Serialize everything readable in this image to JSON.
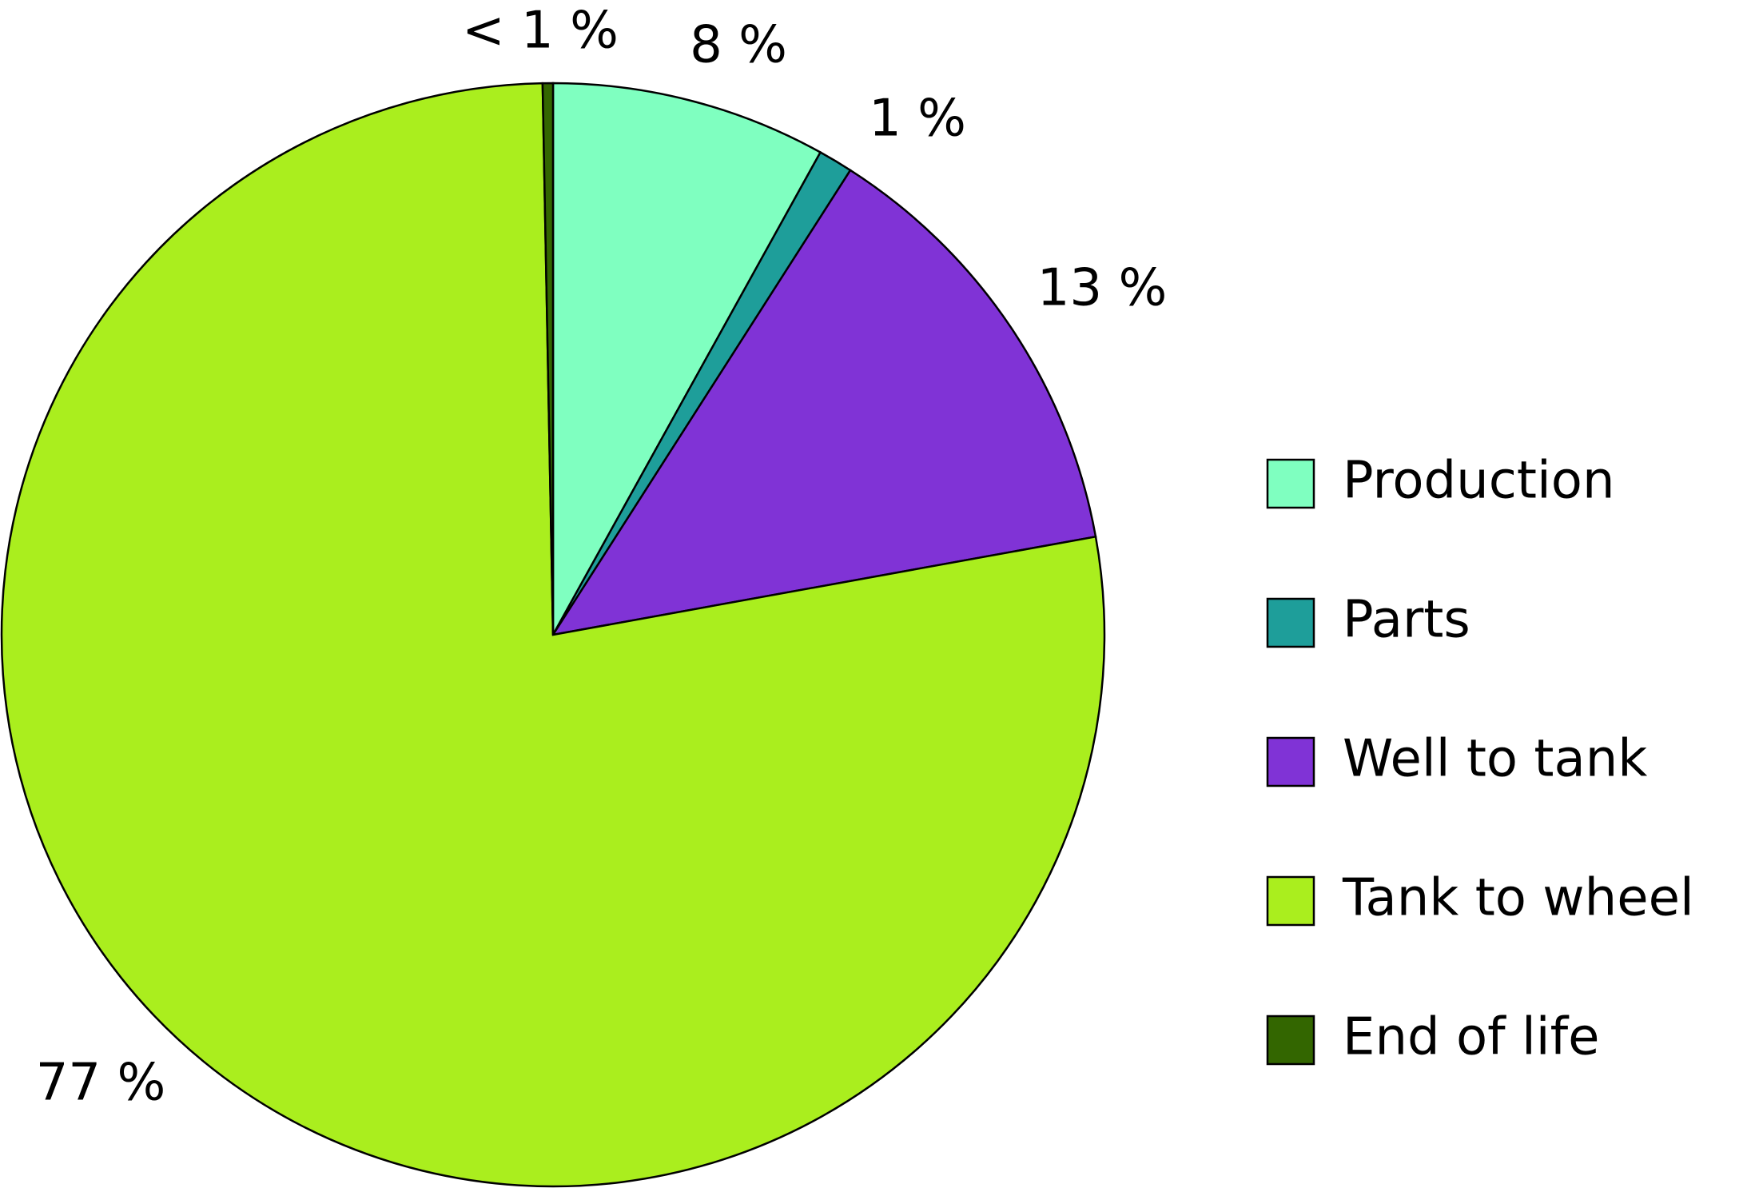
{
  "chart_data": {
    "type": "pie",
    "categories": [
      "Production",
      "Parts",
      "Well to tank",
      "Tank to wheel",
      "End of life"
    ],
    "values": [
      8,
      1,
      13,
      77,
      0.3
    ],
    "value_labels": [
      "8 %",
      "1 %",
      "13 %",
      "77 %",
      "< 1 %"
    ],
    "colors": [
      "#7fffc0",
      "#1e9e9a",
      "#8033d6",
      "#aaee1e",
      "#336600"
    ],
    "legend": "right"
  }
}
